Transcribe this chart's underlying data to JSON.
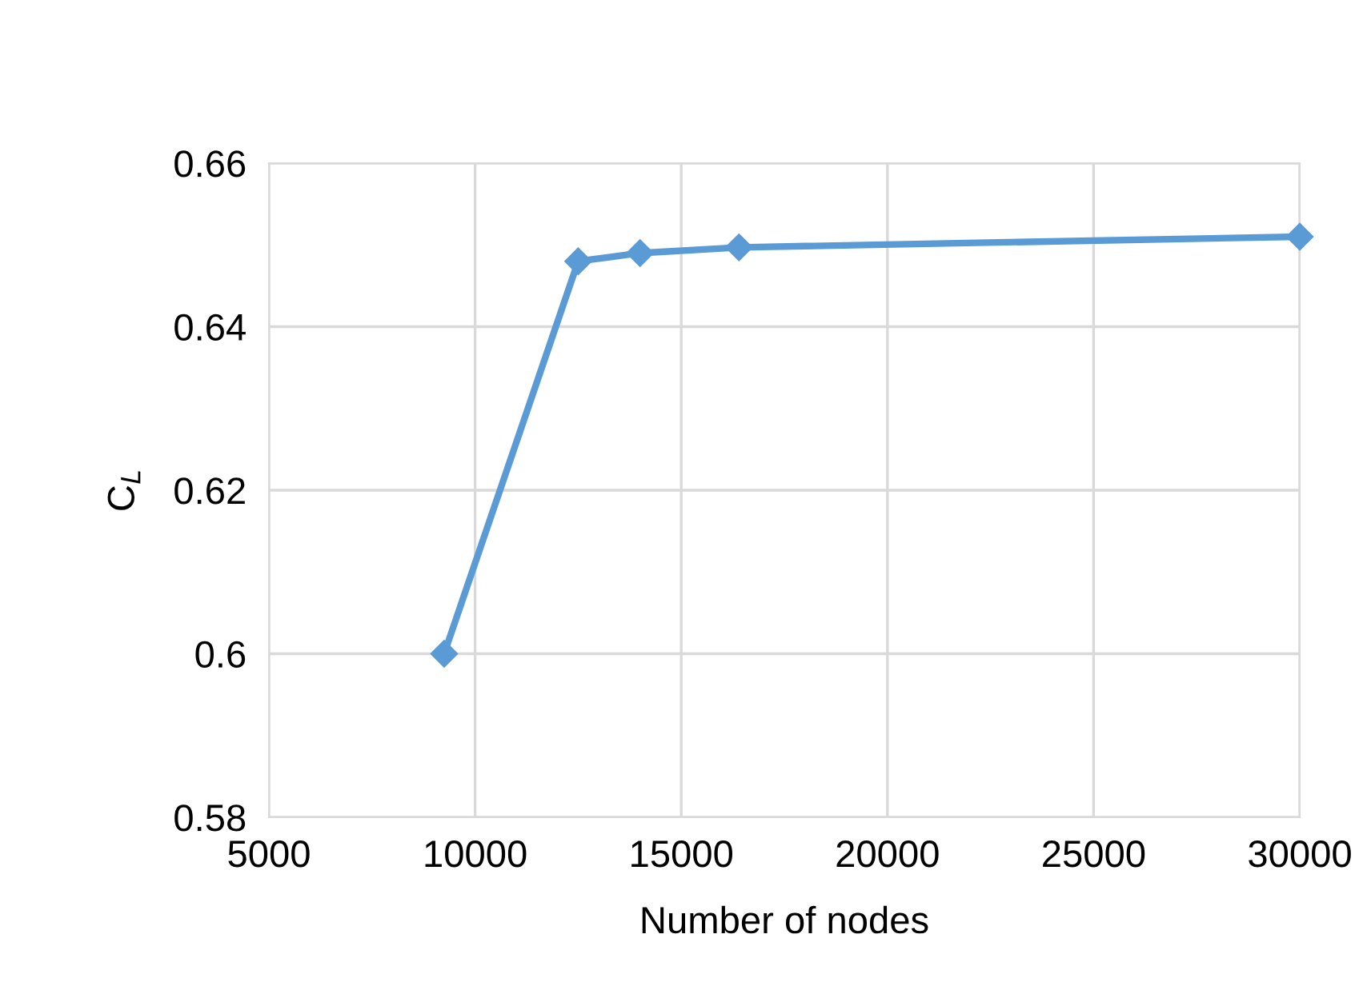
{
  "chart_data": {
    "type": "line",
    "xlabel": "Number of nodes",
    "ylabel": "C$_{L}$",
    "x": [
      9250,
      12500,
      14000,
      16400,
      30000
    ],
    "series": [
      {
        "color": "#5b9bd5",
        "values": [
          0.6,
          0.648,
          0.649,
          0.6497,
          0.651
        ]
      }
    ],
    "xlim": [
      5000,
      30000
    ],
    "xticks": [
      5000,
      10000,
      15000,
      20000,
      25000,
      30000
    ],
    "ylim": [
      0.58,
      0.66
    ],
    "yticks": [
      0.58,
      0.6,
      0.62,
      0.64,
      0.66
    ],
    "grid": true,
    "marker": "diamond",
    "line_style": "solid"
  }
}
